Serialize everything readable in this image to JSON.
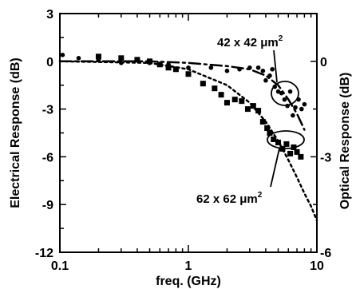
{
  "chart_data": {
    "type": "scatter",
    "xlabel": "freq. (GHz)",
    "ylabel_left": "Electrical Response (dB)",
    "ylabel_right": "Optical Response (dB)",
    "x_scale": "log",
    "xlim": [
      0.1,
      10
    ],
    "ylim_left": [
      -12,
      3
    ],
    "ylim_right": [
      -6,
      1.5
    ],
    "x_ticks": [
      "0.1",
      "1",
      "10"
    ],
    "y_ticks_left": [
      "3",
      "0",
      "-3",
      "-6",
      "-9",
      "-12"
    ],
    "y_ticks_right": [
      "0",
      "-3",
      "-6"
    ],
    "grid": false,
    "annotations": [
      {
        "text": "42 x 42",
        "unit_prefix": "μm",
        "unit_sup": "2"
      },
      {
        "text": "62 x 62",
        "unit_prefix": "μm",
        "unit_sup": "2"
      }
    ],
    "series": [
      {
        "marker": "circle",
        "points": [
          [
            0.105,
            0.4
          ],
          [
            0.14,
            0.2
          ],
          [
            0.2,
            0.1
          ],
          [
            0.3,
            -0.1
          ],
          [
            0.4,
            0.1
          ],
          [
            0.5,
            -0.1
          ],
          [
            0.7,
            -0.2
          ],
          [
            1.0,
            -0.4
          ],
          [
            1.5,
            -0.4
          ],
          [
            2.0,
            -0.6
          ],
          [
            2.5,
            -0.5
          ],
          [
            3.0,
            -0.4
          ],
          [
            3.5,
            -0.4
          ],
          [
            3.8,
            -0.6
          ],
          [
            4.0,
            -1.2
          ],
          [
            4.3,
            -0.9
          ],
          [
            4.5,
            -0.5
          ],
          [
            4.7,
            -1.6
          ],
          [
            5.0,
            -1.9
          ],
          [
            5.3,
            -2.0
          ],
          [
            5.6,
            -2.4
          ],
          [
            5.9,
            -2.8
          ],
          [
            6.2,
            -1.9
          ],
          [
            6.5,
            -3.4
          ],
          [
            6.8,
            -2.9
          ],
          [
            7.2,
            -2.4
          ],
          [
            7.6,
            -3.0
          ],
          [
            8.0,
            -2.7
          ]
        ]
      },
      {
        "marker": "square",
        "points": [
          [
            0.2,
            0.3
          ],
          [
            0.3,
            0.2
          ],
          [
            0.4,
            0.1
          ],
          [
            0.5,
            0.0
          ],
          [
            0.6,
            -0.2
          ],
          [
            0.7,
            -0.4
          ],
          [
            0.8,
            -0.5
          ],
          [
            1.0,
            -0.8
          ],
          [
            1.3,
            -1.4
          ],
          [
            1.6,
            -1.7
          ],
          [
            1.8,
            -2.1
          ],
          [
            2.0,
            -2.6
          ],
          [
            2.3,
            -2.4
          ],
          [
            2.6,
            -2.5
          ],
          [
            2.9,
            -3.0
          ],
          [
            3.2,
            -2.8
          ],
          [
            3.5,
            -3.1
          ],
          [
            3.8,
            -3.8
          ],
          [
            4.1,
            -4.2
          ],
          [
            4.3,
            -4.5
          ],
          [
            4.6,
            -4.9
          ],
          [
            5.0,
            -5.1
          ],
          [
            5.4,
            -5.5
          ],
          [
            5.8,
            -5.2
          ],
          [
            6.2,
            -5.8
          ],
          [
            6.6,
            -5.4
          ],
          [
            7.0,
            -5.7
          ],
          [
            7.5,
            -6.0
          ]
        ]
      },
      {
        "line": "dash-dot",
        "points": [
          [
            0.1,
            0.0
          ],
          [
            0.5,
            0.0
          ],
          [
            1.0,
            -0.1
          ],
          [
            2.0,
            -0.3
          ],
          [
            3.0,
            -0.5
          ],
          [
            4.0,
            -0.9
          ],
          [
            5.0,
            -1.5
          ],
          [
            6.0,
            -2.4
          ],
          [
            7.0,
            -3.3
          ],
          [
            8.0,
            -4.3
          ]
        ]
      },
      {
        "line": "dotted",
        "points": [
          [
            0.1,
            0.0
          ],
          [
            0.5,
            -0.1
          ],
          [
            1.0,
            -0.5
          ],
          [
            2.0,
            -1.5
          ],
          [
            3.0,
            -2.6
          ],
          [
            4.0,
            -3.8
          ],
          [
            5.0,
            -5.0
          ],
          [
            6.0,
            -6.2
          ],
          [
            7.0,
            -7.3
          ],
          [
            8.0,
            -8.3
          ],
          [
            9.0,
            -9.1
          ],
          [
            10.0,
            -10.0
          ]
        ]
      }
    ]
  }
}
